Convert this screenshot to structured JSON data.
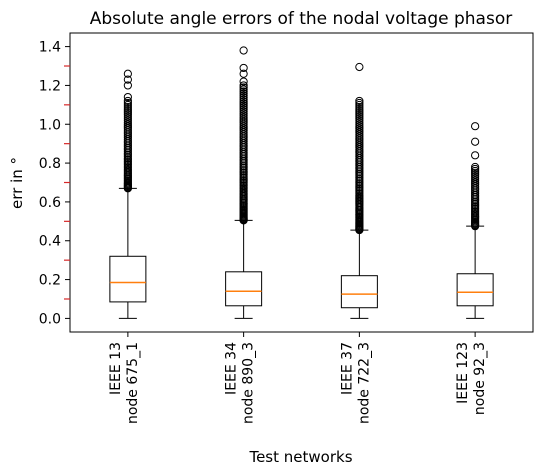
{
  "chart_data": {
    "type": "box",
    "title": "Absolute angle errors of the nodal voltage phasor",
    "xlabel": "Test networks",
    "ylabel": "err in °",
    "ylim": [
      -0.07,
      1.47
    ],
    "yticks": [
      "0.0",
      "0.2",
      "0.4",
      "0.6",
      "0.8",
      "1.0",
      "1.2",
      "1.4"
    ],
    "ytick_values": [
      0.0,
      0.2,
      0.4,
      0.6,
      0.8,
      1.0,
      1.2,
      1.4
    ],
    "minor_ytick_values": [
      0.1,
      0.3,
      0.5,
      0.7,
      0.9,
      1.1,
      1.3
    ],
    "colors": {
      "median": "#ff7f0e",
      "box": "#000000",
      "minor_tick": "#d62728"
    },
    "categories": [
      {
        "line1": "IEEE 13",
        "line2": "node 675_1"
      },
      {
        "line1": "IEEE 34",
        "line2": "node 890_3"
      },
      {
        "line1": "IEEE 37",
        "line2": "node 722_3"
      },
      {
        "line1": "IEEE 123",
        "line2": "node 92_3"
      }
    ],
    "boxes": [
      {
        "whisker_low": 0.0,
        "q1": 0.085,
        "median": 0.185,
        "q3": 0.32,
        "whisker_high": 0.67,
        "outliers_dense_range": [
          0.67,
          1.12
        ],
        "outliers": [
          1.14,
          1.2,
          1.23,
          1.26
        ]
      },
      {
        "whisker_low": 0.0,
        "q1": 0.065,
        "median": 0.14,
        "q3": 0.24,
        "whisker_high": 0.505,
        "outliers_dense_range": [
          0.505,
          1.2
        ],
        "outliers": [
          1.22,
          1.26,
          1.29,
          1.38
        ]
      },
      {
        "whisker_low": 0.0,
        "q1": 0.055,
        "median": 0.125,
        "q3": 0.22,
        "whisker_high": 0.455,
        "outliers_dense_range": [
          0.455,
          1.12
        ],
        "outliers": [
          1.295
        ]
      },
      {
        "whisker_low": 0.0,
        "q1": 0.065,
        "median": 0.135,
        "q3": 0.23,
        "whisker_high": 0.475,
        "outliers_dense_range": [
          0.475,
          0.78
        ],
        "outliers": [
          0.84,
          0.91,
          0.99
        ]
      }
    ]
  }
}
